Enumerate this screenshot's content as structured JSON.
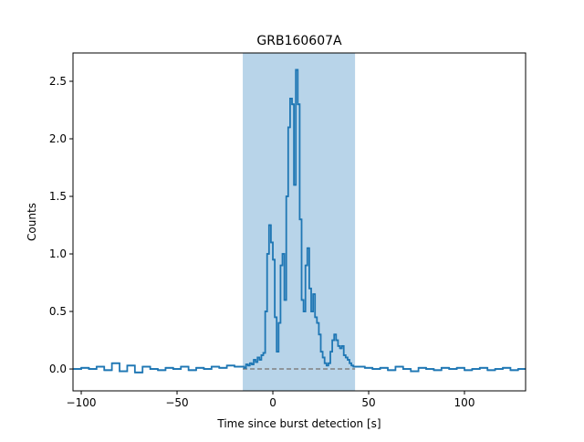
{
  "chart_data": {
    "type": "step",
    "title": "GRB160607A",
    "x_label": "Time since burst detection [s]",
    "y_label": "Counts",
    "x": [
      -104,
      -100,
      -96,
      -92,
      -88,
      -84,
      -80,
      -76,
      -72,
      -68,
      -64,
      -60,
      -56,
      -52,
      -48,
      -44,
      -40,
      -36,
      -32,
      -28,
      -24,
      -20,
      -16,
      -15,
      -14,
      -13,
      -12,
      -11,
      -10,
      -9,
      -8,
      -7,
      -6,
      -5,
      -4,
      -3,
      -2,
      -1,
      0,
      1,
      2,
      3,
      4,
      5,
      6,
      7,
      8,
      9,
      10,
      11,
      12,
      13,
      14,
      15,
      16,
      17,
      18,
      19,
      20,
      21,
      22,
      23,
      24,
      25,
      26,
      27,
      28,
      29,
      30,
      31,
      32,
      33,
      34,
      35,
      36,
      37,
      38,
      39,
      40,
      41,
      42,
      43,
      44,
      48,
      52,
      56,
      60,
      64,
      68,
      72,
      76,
      80,
      84,
      88,
      92,
      96,
      100,
      104,
      108,
      112,
      116,
      120,
      124,
      128
    ],
    "series": [
      {
        "color": "#1f77b4",
        "values": [
          0.0,
          0.01,
          0.0,
          0.02,
          -0.01,
          0.05,
          -0.02,
          0.03,
          -0.03,
          0.02,
          0.0,
          -0.01,
          0.01,
          0.0,
          0.02,
          -0.01,
          0.01,
          0.0,
          0.02,
          0.01,
          0.03,
          0.02,
          0.02,
          0.01,
          0.04,
          0.03,
          0.05,
          0.04,
          0.08,
          0.06,
          0.1,
          0.08,
          0.12,
          0.14,
          0.5,
          1.0,
          1.25,
          1.1,
          0.95,
          0.45,
          0.15,
          0.4,
          0.9,
          1.0,
          0.6,
          1.5,
          2.1,
          2.35,
          2.3,
          1.6,
          2.6,
          2.3,
          1.3,
          0.6,
          0.5,
          0.9,
          1.05,
          0.7,
          0.5,
          0.65,
          0.45,
          0.4,
          0.3,
          0.15,
          0.1,
          0.05,
          0.03,
          0.05,
          0.15,
          0.25,
          0.3,
          0.25,
          0.2,
          0.18,
          0.2,
          0.12,
          0.1,
          0.08,
          0.05,
          0.03,
          0.02,
          0.02,
          0.02,
          0.01,
          0.0,
          0.01,
          -0.01,
          0.02,
          0.0,
          -0.02,
          0.01,
          0.0,
          -0.01,
          0.01,
          0.0,
          0.01,
          -0.01,
          0.0,
          0.01,
          -0.01,
          0.0,
          0.01,
          -0.01,
          0.0
        ]
      }
    ],
    "span": [
      -15.7,
      42.9
    ],
    "span_color": "#b8d4e9",
    "hline": 0,
    "hline_color": "#808080",
    "xlim": [
      -104.3,
      131.9
    ],
    "ylim": [
      -0.19,
      2.746
    ],
    "xticks": [
      {
        "value": -100,
        "label": "−100"
      },
      {
        "value": -50,
        "label": "−50"
      },
      0,
      50,
      100
    ],
    "yticks": [
      {
        "value": 0,
        "label": "0.0"
      },
      0.5,
      {
        "value": 1,
        "label": "1.0"
      },
      1.5,
      {
        "value": 2,
        "label": "2.0"
      },
      2.5
    ]
  }
}
